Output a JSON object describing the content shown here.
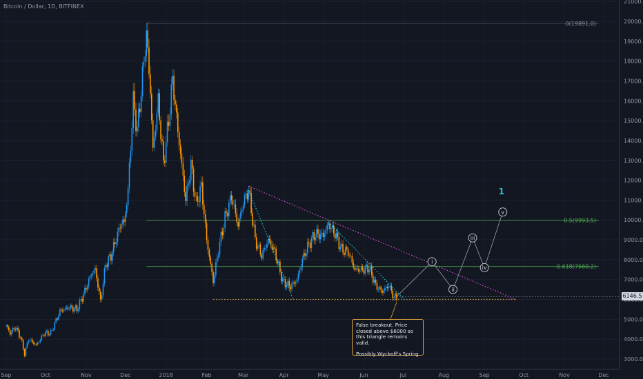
{
  "title": "Bitcoin / Dollar, 1D, BITFINEX",
  "note": {
    "line1": "False breakout. Price closed above $6000 so this triangle remains valid.",
    "line2": "Possibly Wyckoff's Spring"
  },
  "last_price_label": "6146.5",
  "colors": {
    "up": "#2196f3",
    "down": "#ff9800",
    "background": "#131722",
    "fib": "#4caf50",
    "resistance": "#d64fd6",
    "support": "#e0a63a",
    "channel": "#26c6da"
  },
  "chart_data": {
    "type": "candlestick",
    "title": "Bitcoin / Dollar, 1D, BITFINEX",
    "y_axis": {
      "range": [
        2800,
        21000
      ],
      "ticks": [
        3000,
        4000,
        5000,
        6000,
        7000,
        8000,
        9000,
        10000,
        11000,
        12000,
        13000,
        14000,
        15000,
        16000,
        17000,
        18000,
        19000,
        20000,
        21000
      ],
      "labels": [
        "3000.0",
        "4000.0",
        "5000.0",
        "6000.0",
        "7000.0",
        "8000.0",
        "9000.0",
        "10000.0",
        "11000.0",
        "12000.0",
        "13000.0",
        "14000.0",
        "15000.0",
        "16000.0",
        "17000.0",
        "18000.0",
        "19000.0",
        "20000.0",
        "21000.0"
      ]
    },
    "x_axis": {
      "labels": [
        "Sep",
        "Oct",
        "Nov",
        "Dec",
        "2018",
        "Feb",
        "Mar",
        "Apr",
        "May",
        "Jun",
        "Jul",
        "Aug",
        "Sep",
        "Oct",
        "Nov",
        "Dec"
      ]
    },
    "price_path": [
      [
        "2017-09-01",
        4700
      ],
      [
        "2017-09-04",
        4300
      ],
      [
        "2017-09-08",
        4600
      ],
      [
        "2017-09-12",
        4100
      ],
      [
        "2017-09-15",
        3250
      ],
      [
        "2017-09-18",
        4000
      ],
      [
        "2017-09-24",
        3700
      ],
      [
        "2017-09-30",
        4300
      ],
      [
        "2017-10-05",
        4300
      ],
      [
        "2017-10-12",
        5400
      ],
      [
        "2017-10-19",
        5600
      ],
      [
        "2017-10-25",
        5500
      ],
      [
        "2017-10-31",
        6400
      ],
      [
        "2017-11-05",
        7300
      ],
      [
        "2017-11-08",
        7500
      ],
      [
        "2017-11-12",
        5900
      ],
      [
        "2017-11-16",
        7800
      ],
      [
        "2017-11-20",
        8200
      ],
      [
        "2017-11-26",
        9500
      ],
      [
        "2017-11-29",
        10000
      ],
      [
        "2017-11-30",
        9800
      ],
      [
        "2017-12-03",
        11500
      ],
      [
        "2017-12-07",
        16000
      ],
      [
        "2017-12-10",
        14500
      ],
      [
        "2017-12-13",
        16500
      ],
      [
        "2017-12-17",
        19400
      ],
      [
        "2017-12-20",
        16500
      ],
      [
        "2017-12-22",
        13500
      ],
      [
        "2017-12-26",
        16000
      ],
      [
        "2017-12-30",
        12800
      ],
      [
        "2018-01-03",
        15000
      ],
      [
        "2018-01-06",
        17100
      ],
      [
        "2018-01-10",
        14500
      ],
      [
        "2018-01-16",
        11000
      ],
      [
        "2018-01-20",
        12800
      ],
      [
        "2018-01-24",
        10800
      ],
      [
        "2018-01-28",
        11700
      ],
      [
        "2018-02-01",
        9000
      ],
      [
        "2018-02-06",
        6900
      ],
      [
        "2018-02-10",
        8500
      ],
      [
        "2018-02-15",
        10100
      ],
      [
        "2018-02-20",
        11200
      ],
      [
        "2018-02-25",
        9700
      ],
      [
        "2018-03-01",
        10900
      ],
      [
        "2018-03-05",
        11500
      ],
      [
        "2018-03-10",
        9000
      ],
      [
        "2018-03-15",
        8200
      ],
      [
        "2018-03-20",
        9000
      ],
      [
        "2018-03-25",
        8400
      ],
      [
        "2018-03-31",
        6900
      ],
      [
        "2018-04-06",
        6650
      ],
      [
        "2018-04-11",
        7000
      ],
      [
        "2018-04-15",
        8000
      ],
      [
        "2018-04-20",
        8800
      ],
      [
        "2018-04-25",
        9300
      ],
      [
        "2018-05-01",
        9200
      ],
      [
        "2018-05-05",
        9800
      ],
      [
        "2018-05-10",
        9300
      ],
      [
        "2018-05-15",
        8500
      ],
      [
        "2018-05-20",
        8400
      ],
      [
        "2018-05-25",
        7500
      ],
      [
        "2018-05-31",
        7500
      ],
      [
        "2018-06-05",
        7600
      ],
      [
        "2018-06-10",
        6700
      ],
      [
        "2018-06-15",
        6400
      ],
      [
        "2018-06-20",
        6700
      ],
      [
        "2018-06-24",
        6100
      ],
      [
        "2018-06-26",
        6146.5
      ]
    ],
    "fib_levels": [
      {
        "label": "0(19891.0)",
        "value": 19891.0
      },
      {
        "label": "0.5(9993.5)",
        "value": 9993.5
      },
      {
        "label": "0.618(7660.2)",
        "value": 7660.2
      }
    ],
    "support_level": 6000,
    "resistance_line": [
      [
        "2018-03-05",
        11700
      ],
      [
        "2018-09-25",
        6000
      ]
    ],
    "channel_lines": [
      [
        [
          "2018-03-05",
          11500
        ],
        [
          "2018-04-08",
          6000
        ]
      ],
      [
        [
          "2018-05-05",
          9900
        ],
        [
          "2018-07-02",
          6000
        ]
      ]
    ],
    "wave_labels": [
      {
        "label": "i",
        "date": "2018-07-23",
        "value": 7900
      },
      {
        "label": "ii",
        "date": "2018-08-08",
        "value": 6500
      },
      {
        "label": "iii",
        "date": "2018-08-23",
        "value": 9100
      },
      {
        "label": "iv",
        "date": "2018-09-01",
        "value": 7600
      },
      {
        "label": "v",
        "date": "2018-09-15",
        "value": 10400
      }
    ],
    "wave_path": [
      [
        "2018-06-26",
        6146.5
      ],
      [
        "2018-07-23",
        7900
      ],
      [
        "2018-08-08",
        6500
      ],
      [
        "2018-08-23",
        9100
      ],
      [
        "2018-09-01",
        7600
      ],
      [
        "2018-09-15",
        10400
      ]
    ],
    "wave_degree_label": {
      "label": "1",
      "date": "2018-09-14",
      "value": 11300
    },
    "last_price": 6146.5
  }
}
